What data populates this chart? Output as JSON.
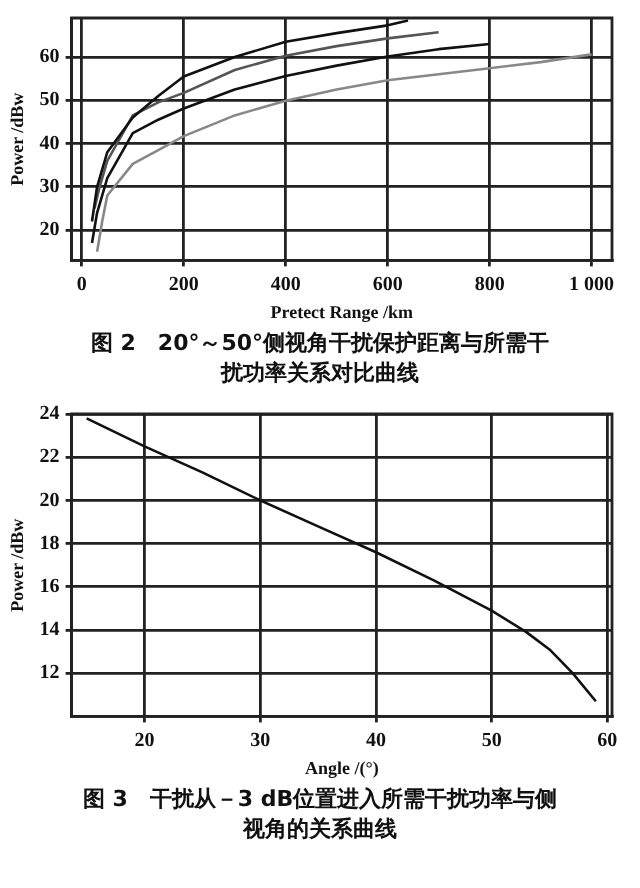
{
  "chart_data": [
    {
      "type": "line",
      "xlabel": "Pretect Range /km",
      "ylabel": "Power /dBw",
      "xlim": [
        -20,
        1040
      ],
      "ylim": [
        13,
        69
      ],
      "xticks": [
        0,
        200,
        400,
        600,
        800,
        {
          "value": 1000,
          "label": "1 000"
        }
      ],
      "yticks": [
        20,
        30,
        40,
        50,
        60
      ],
      "grid": true,
      "marker": "none",
      "line_style": "solid",
      "annotations": [
        "图 2　20°～50°侧视角干扰保护距离与所需干扰功率关系对比曲线"
      ],
      "series": [
        {
          "color": "#111111",
          "x": [
            20,
            30,
            50,
            100,
            150,
            200,
            300,
            400,
            500,
            600,
            640
          ],
          "values": [
            22,
            30,
            38,
            46,
            51,
            55.5,
            60,
            63.5,
            65.5,
            67.3,
            68.4
          ]
        },
        {
          "color": "#555555",
          "x": [
            25,
            35,
            50,
            100,
            150,
            200,
            300,
            400,
            500,
            600,
            700
          ],
          "values": [
            25,
            30,
            36,
            46.5,
            49.5,
            51.7,
            57,
            60.3,
            62.5,
            64.3,
            65.7
          ]
        },
        {
          "color": "#111111",
          "x": [
            20,
            30,
            50,
            100,
            150,
            200,
            300,
            400,
            500,
            600,
            700,
            800
          ],
          "values": [
            17,
            24,
            32,
            42.4,
            45.5,
            48.1,
            52.5,
            55.6,
            58,
            60.1,
            61.8,
            63
          ]
        },
        {
          "color": "#888888",
          "x": [
            30,
            40,
            50,
            100,
            150,
            200,
            300,
            400,
            500,
            600,
            700,
            800,
            900,
            1000
          ],
          "values": [
            15,
            22,
            28,
            35.3,
            38.5,
            41.7,
            46.5,
            49.9,
            52.5,
            54.6,
            56,
            57.4,
            58.8,
            60.6
          ]
        }
      ]
    },
    {
      "type": "line",
      "xlabel": "Angle /(°)",
      "ylabel": "Power /dBw",
      "xlim": [
        13.7,
        60.4
      ],
      "ylim": [
        10,
        24
      ],
      "xticks": [
        20,
        30,
        40,
        50,
        60
      ],
      "yticks": [
        12,
        14,
        16,
        18,
        20,
        22,
        24
      ],
      "grid": true,
      "marker": "none",
      "line_style": "solid",
      "annotations": [
        "图 3　干扰从－3 dB位置进入所需干扰功率与侧视角的关系曲线"
      ],
      "series": [
        {
          "color": "#111111",
          "x": [
            15,
            20,
            25,
            30,
            35,
            40,
            45,
            50,
            53,
            55,
            57,
            59
          ],
          "values": [
            23.8,
            22.5,
            21.3,
            20,
            18.8,
            17.6,
            16.3,
            14.9,
            13.9,
            13.1,
            12,
            10.7
          ]
        }
      ]
    }
  ]
}
